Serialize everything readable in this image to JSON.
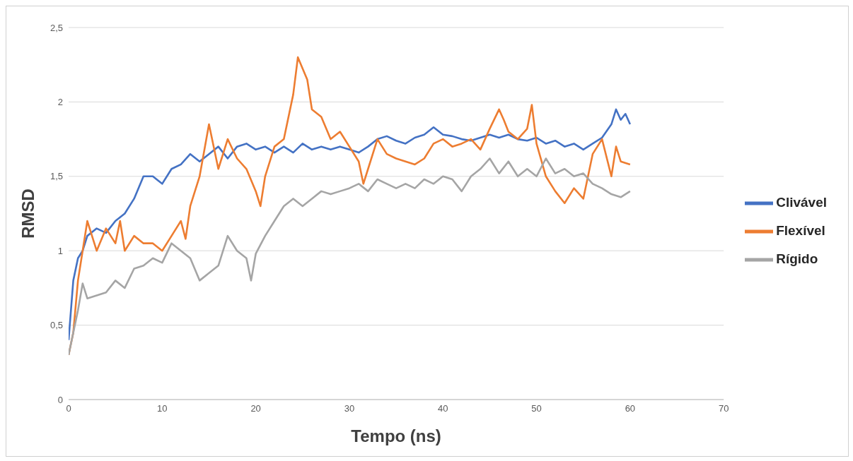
{
  "chart_data": {
    "type": "line",
    "xlabel": "Tempo (ns)",
    "ylabel": "RMSD",
    "xlim": [
      0,
      70
    ],
    "xticks": [
      0,
      10,
      20,
      30,
      40,
      50,
      60,
      70
    ],
    "ylim": [
      0,
      2.5
    ],
    "yticks": [
      0,
      {
        "value": 0.5,
        "label": "0,5"
      },
      1,
      {
        "value": 1.5,
        "label": "1,5"
      },
      2,
      {
        "value": 2.5,
        "label": "2,5"
      }
    ],
    "grid": "y",
    "legend": "right",
    "marker": "none",
    "line_style": "solid",
    "series": [
      {
        "name": "Clivável",
        "color": "#4472c4",
        "x": [
          0,
          0.5,
          1,
          1.5,
          2,
          3,
          4,
          5,
          6,
          7,
          8,
          9,
          10,
          11,
          12,
          13,
          14,
          15,
          16,
          17,
          18,
          19,
          20,
          21,
          22,
          23,
          24,
          25,
          26,
          27,
          28,
          29,
          30,
          31,
          32,
          33,
          34,
          35,
          36,
          37,
          38,
          39,
          40,
          41,
          42,
          43,
          44,
          45,
          46,
          47,
          48,
          49,
          50,
          51,
          52,
          53,
          54,
          55,
          56,
          57,
          58,
          58.5,
          59,
          59.5,
          60
        ],
        "values": [
          0.4,
          0.8,
          0.95,
          1.0,
          1.1,
          1.15,
          1.12,
          1.2,
          1.25,
          1.35,
          1.5,
          1.5,
          1.45,
          1.55,
          1.58,
          1.65,
          1.6,
          1.65,
          1.7,
          1.62,
          1.7,
          1.72,
          1.68,
          1.7,
          1.66,
          1.7,
          1.66,
          1.72,
          1.68,
          1.7,
          1.68,
          1.7,
          1.68,
          1.66,
          1.7,
          1.75,
          1.77,
          1.74,
          1.72,
          1.76,
          1.78,
          1.83,
          1.78,
          1.77,
          1.75,
          1.74,
          1.76,
          1.78,
          1.76,
          1.78,
          1.75,
          1.74,
          1.76,
          1.72,
          1.74,
          1.7,
          1.72,
          1.68,
          1.72,
          1.76,
          1.85,
          1.95,
          1.88,
          1.92,
          1.85
        ]
      },
      {
        "name": "Flexível",
        "color": "#ed7d31",
        "x": [
          0,
          0.5,
          1,
          1.5,
          2,
          3,
          4,
          5,
          5.5,
          6,
          7,
          8,
          9,
          10,
          11,
          12,
          12.5,
          13,
          14,
          15,
          16,
          17,
          18,
          19,
          20,
          20.5,
          21,
          22,
          23,
          24,
          24.5,
          25.5,
          26,
          27,
          28,
          29,
          30,
          31,
          31.5,
          32,
          33,
          34,
          35,
          36,
          37,
          38,
          39,
          40,
          41,
          42,
          43,
          44,
          45,
          46,
          46.5,
          47,
          48,
          49,
          49.5,
          50,
          51,
          52,
          53,
          54,
          55,
          56,
          57,
          58,
          58.5,
          59,
          60
        ],
        "values": [
          0.3,
          0.45,
          0.8,
          1.0,
          1.2,
          1.0,
          1.15,
          1.05,
          1.2,
          1.0,
          1.1,
          1.05,
          1.05,
          1.0,
          1.1,
          1.2,
          1.08,
          1.3,
          1.5,
          1.85,
          1.55,
          1.75,
          1.62,
          1.55,
          1.4,
          1.3,
          1.5,
          1.7,
          1.75,
          2.05,
          2.3,
          2.15,
          1.95,
          1.9,
          1.75,
          1.8,
          1.7,
          1.6,
          1.45,
          1.55,
          1.75,
          1.65,
          1.62,
          1.6,
          1.58,
          1.62,
          1.72,
          1.75,
          1.7,
          1.72,
          1.75,
          1.68,
          1.82,
          1.95,
          1.88,
          1.8,
          1.75,
          1.82,
          1.98,
          1.72,
          1.5,
          1.4,
          1.32,
          1.42,
          1.35,
          1.65,
          1.75,
          1.5,
          1.7,
          1.6,
          1.58
        ]
      },
      {
        "name": "Rígido",
        "color": "#a5a5a5",
        "x": [
          0,
          0.5,
          1,
          1.5,
          2,
          3,
          4,
          5,
          6,
          7,
          8,
          9,
          10,
          11,
          12,
          13,
          14,
          15,
          16,
          17,
          18,
          19,
          19.5,
          20,
          21,
          22,
          23,
          24,
          25,
          26,
          27,
          28,
          29,
          30,
          31,
          32,
          33,
          34,
          35,
          36,
          37,
          38,
          39,
          40,
          41,
          42,
          43,
          44,
          45,
          46,
          47,
          48,
          49,
          50,
          51,
          52,
          53,
          54,
          55,
          56,
          57,
          58,
          59,
          60
        ],
        "values": [
          0.3,
          0.45,
          0.6,
          0.78,
          0.68,
          0.7,
          0.72,
          0.8,
          0.75,
          0.88,
          0.9,
          0.95,
          0.92,
          1.05,
          1.0,
          0.95,
          0.8,
          0.85,
          0.9,
          1.1,
          1.0,
          0.95,
          0.8,
          0.98,
          1.1,
          1.2,
          1.3,
          1.35,
          1.3,
          1.35,
          1.4,
          1.38,
          1.4,
          1.42,
          1.45,
          1.4,
          1.48,
          1.45,
          1.42,
          1.45,
          1.42,
          1.48,
          1.45,
          1.5,
          1.48,
          1.4,
          1.5,
          1.55,
          1.62,
          1.52,
          1.6,
          1.5,
          1.55,
          1.5,
          1.62,
          1.52,
          1.55,
          1.5,
          1.52,
          1.45,
          1.42,
          1.38,
          1.36,
          1.4
        ]
      }
    ]
  }
}
